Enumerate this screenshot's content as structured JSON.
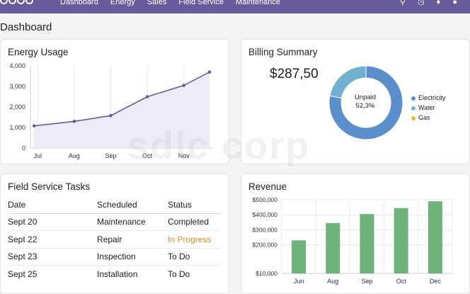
{
  "nav": {
    "items": [
      "Dashboard",
      "Energy",
      "Sales",
      "Field Service",
      "Maintenance"
    ]
  },
  "page_title": "Dashboard",
  "energy": {
    "title": "Energy Usage",
    "chart_data": {
      "type": "area",
      "title": "Energy Usage",
      "categories": [
        "Jul",
        "Aug",
        "Sep",
        "Oct",
        "Nov"
      ],
      "x": [
        0,
        1,
        2,
        3,
        4,
        5
      ],
      "values": [
        1080,
        1300,
        1580,
        2500,
        3050,
        3700
      ],
      "yticks": [
        "4,000",
        "3,000",
        "2,000",
        "1,000",
        "0"
      ],
      "ylim": [
        0,
        4000
      ],
      "line_color": "#6a5b9c",
      "fill_color": "#efeaf8"
    }
  },
  "billing": {
    "title": "Billing Summary",
    "amount": "$287,50",
    "center_label": "Unpaid",
    "center_value": "52,3%",
    "legend": [
      {
        "label": "Electricity",
        "color": "#5b8fcc"
      },
      {
        "label": "Water",
        "color": "#6fb0cf"
      },
      {
        "label": "Gas",
        "color": "#e9b63d"
      }
    ],
    "chart_data": {
      "type": "pie",
      "labels": [
        "Electricity",
        "Water",
        "Gas"
      ],
      "values": [
        78,
        22,
        0
      ]
    }
  },
  "tasks": {
    "title": "Field Service Tasks",
    "headers": {
      "date": "Date",
      "scheduled": "Scheduled",
      "status": "Status"
    },
    "rows": [
      {
        "date": "Sept 20",
        "scheduled": "Maintenance",
        "status": "Completed",
        "status_color": "#222222"
      },
      {
        "date": "Sept 22",
        "scheduled": "Repair",
        "status": "In Progress",
        "status_color": "#e08b26"
      },
      {
        "date": "Sept 23",
        "scheduled": "Inspection",
        "status": "To Do",
        "status_color": "#222222"
      },
      {
        "date": "Sept 25",
        "scheduled": "Installation",
        "status": "To Do",
        "status_color": "#222222"
      }
    ]
  },
  "revenue": {
    "title": "Revenue",
    "chart_data": {
      "type": "bar",
      "title": "Revenue",
      "categories": [
        "Jun",
        "Aug",
        "Sep",
        "Oct",
        "Dec"
      ],
      "values": [
        230000,
        345000,
        405000,
        445000,
        490000
      ],
      "ylim": [
        10000,
        500000
      ],
      "ytick_values": [
        500000,
        400000,
        300000,
        200000,
        10000
      ],
      "yticks": [
        "$500,000",
        "$400,000",
        "$300,000",
        "$200,000",
        "$10,000"
      ],
      "bar_color": "#6db37b"
    }
  },
  "watermark": "sdlc corp"
}
